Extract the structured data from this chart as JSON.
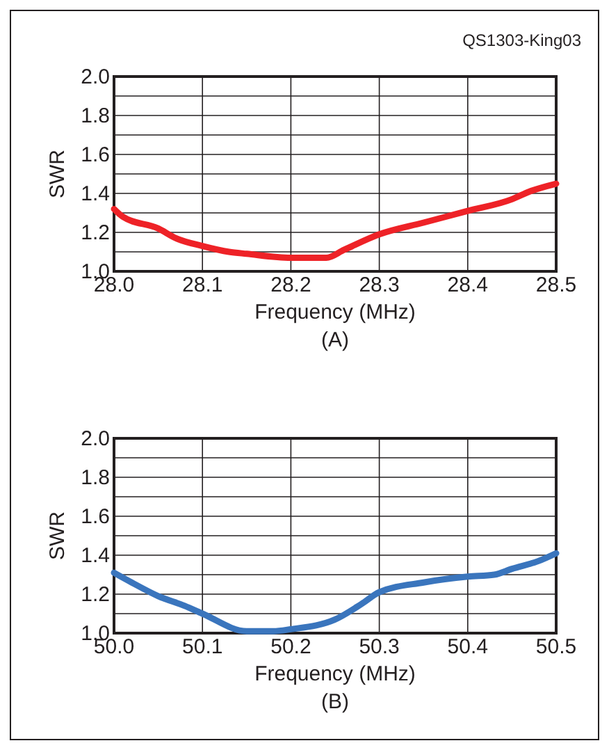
{
  "chart_data": [
    {
      "type": "line",
      "subtitle": "(A)",
      "xlabel": "Frequency (MHz)",
      "ylabel": "SWR",
      "annotations": [
        "QS1303-King03"
      ],
      "xlim": [
        28.0,
        28.5
      ],
      "xticks": [
        {
          "value": 28.0,
          "label": "28.0"
        },
        {
          "value": 28.1,
          "label": "28.1"
        },
        {
          "value": 28.2,
          "label": "28.2"
        },
        {
          "value": 28.3,
          "label": "28.3"
        },
        {
          "value": 28.4,
          "label": "28.4"
        },
        {
          "value": 28.5,
          "label": "28.5"
        }
      ],
      "ylim": [
        1.0,
        2.0
      ],
      "yticks": [
        {
          "value": 1.0,
          "label": "1.0"
        },
        {
          "value": 1.1,
          "label": null
        },
        {
          "value": 1.2,
          "label": "1.2"
        },
        {
          "value": 1.3,
          "label": null
        },
        {
          "value": 1.4,
          "label": "1.4"
        },
        {
          "value": 1.5,
          "label": null
        },
        {
          "value": 1.6,
          "label": "1.6"
        },
        {
          "value": 1.7,
          "label": null
        },
        {
          "value": 1.8,
          "label": "1.8"
        },
        {
          "value": 1.9,
          "label": null
        },
        {
          "value": 2.0,
          "label": "2.0"
        }
      ],
      "grid": true,
      "marker": "none",
      "line_style": "solid",
      "series": [
        {
          "color": "#ee2227",
          "x": [
            28.0,
            28.01,
            28.05,
            28.07,
            28.1,
            28.13,
            28.15,
            28.2,
            28.24,
            28.26,
            28.3,
            28.35,
            28.4,
            28.45,
            28.47,
            28.5
          ],
          "values": [
            1.32,
            1.28,
            1.22,
            1.17,
            1.13,
            1.1,
            1.09,
            1.07,
            1.07,
            1.11,
            1.19,
            1.25,
            1.31,
            1.37,
            1.41,
            1.45
          ]
        }
      ]
    },
    {
      "type": "line",
      "subtitle": "(B)",
      "xlabel": "Frequency (MHz)",
      "ylabel": "SWR",
      "xlim": [
        50.0,
        50.5
      ],
      "xticks": [
        {
          "value": 50.0,
          "label": "50.0"
        },
        {
          "value": 50.1,
          "label": "50.1"
        },
        {
          "value": 50.2,
          "label": "50.2"
        },
        {
          "value": 50.3,
          "label": "50.3"
        },
        {
          "value": 50.4,
          "label": "50.4"
        },
        {
          "value": 50.5,
          "label": "50.5"
        }
      ],
      "ylim": [
        1.0,
        2.0
      ],
      "yticks": [
        {
          "value": 1.0,
          "label": "1.0"
        },
        {
          "value": 1.1,
          "label": null
        },
        {
          "value": 1.2,
          "label": "1.2"
        },
        {
          "value": 1.3,
          "label": null
        },
        {
          "value": 1.4,
          "label": "1.4"
        },
        {
          "value": 1.5,
          "label": null
        },
        {
          "value": 1.6,
          "label": "1.6"
        },
        {
          "value": 1.7,
          "label": null
        },
        {
          "value": 1.8,
          "label": "1.8"
        },
        {
          "value": 1.9,
          "label": null
        },
        {
          "value": 2.0,
          "label": "2.0"
        }
      ],
      "grid": true,
      "marker": "none",
      "line_style": "solid",
      "series": [
        {
          "color": "#3a75bd",
          "x": [
            50.0,
            50.02,
            50.05,
            50.08,
            50.1,
            50.15,
            50.18,
            50.2,
            50.25,
            50.28,
            50.3,
            50.35,
            50.4,
            50.43,
            50.45,
            50.48,
            50.5
          ],
          "values": [
            1.31,
            1.26,
            1.19,
            1.14,
            1.1,
            1.01,
            1.01,
            1.02,
            1.07,
            1.15,
            1.21,
            1.26,
            1.29,
            1.3,
            1.33,
            1.37,
            1.41
          ]
        }
      ]
    }
  ]
}
